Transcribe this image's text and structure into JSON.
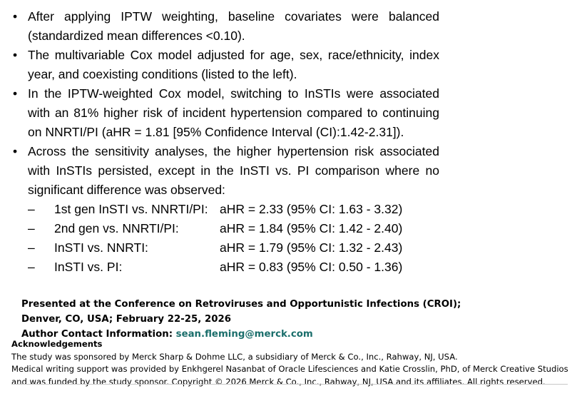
{
  "bullets": [
    {
      "text": "After applying IPTW weighting, baseline covariates were balanced (standardized mean differences <0.10)."
    },
    {
      "text": "The multivariable Cox model adjusted for age, sex, race/ethnicity, index year, and coexisting conditions (listed to the left)."
    },
    {
      "text": "In the IPTW-weighted Cox model, switching to InSTIs were associated with an 81% higher risk of incident hypertension compared to continuing on NNRTI/PI (aHR = 1.81 [95% Confidence Interval (CI):1.42-2.31])."
    },
    {
      "text": "Across the sensitivity analyses, the higher hypertension risk associated with InSTIs persisted, except in the InSTI vs. PI comparison where no significant difference was observed:"
    }
  ],
  "sensitivity": [
    {
      "comparison": "1st gen InSTI vs. NNRTI/PI:",
      "result": "aHR = 2.33 (95% CI: 1.63 - 3.32)"
    },
    {
      "comparison": "2nd gen vs. NNRTI/PI:",
      "result": "aHR = 1.84 (95% CI: 1.42 - 2.40)"
    },
    {
      "comparison": "InSTI vs. NNRTI:",
      "result": "aHR = 1.79 (95% CI: 1.32 - 2.43)"
    },
    {
      "comparison": "InSTI vs. PI:",
      "result": "aHR = 0.83 (95% CI: 0.50 - 1.36)"
    }
  ],
  "presented": {
    "line1": "Presented at the Conference on Retroviruses and Opportunistic Infections (CROI);",
    "line2": "Denver, CO, USA; February 22-25, 2026",
    "contact_label": "Author Contact Information:",
    "contact_email": "sean.fleming@merck.com"
  },
  "acknowledgements": {
    "title": "Acknowledgements",
    "lines": [
      "The study was sponsored by Merck Sharp & Dohme LLC, a subsidiary of Merck & Co., Inc., Rahway, NJ, USA.",
      "Medical writing support was provided by Enkhgerel Nasanbat of Oracle Lifesciences and Katie Crosslin, PhD, of Merck Creative Studios",
      "and was funded by the study sponsor. Copyright © 2026 Merck & Co., Inc., Rahway, NJ, USA and its affiliates. All rights reserved."
    ]
  }
}
